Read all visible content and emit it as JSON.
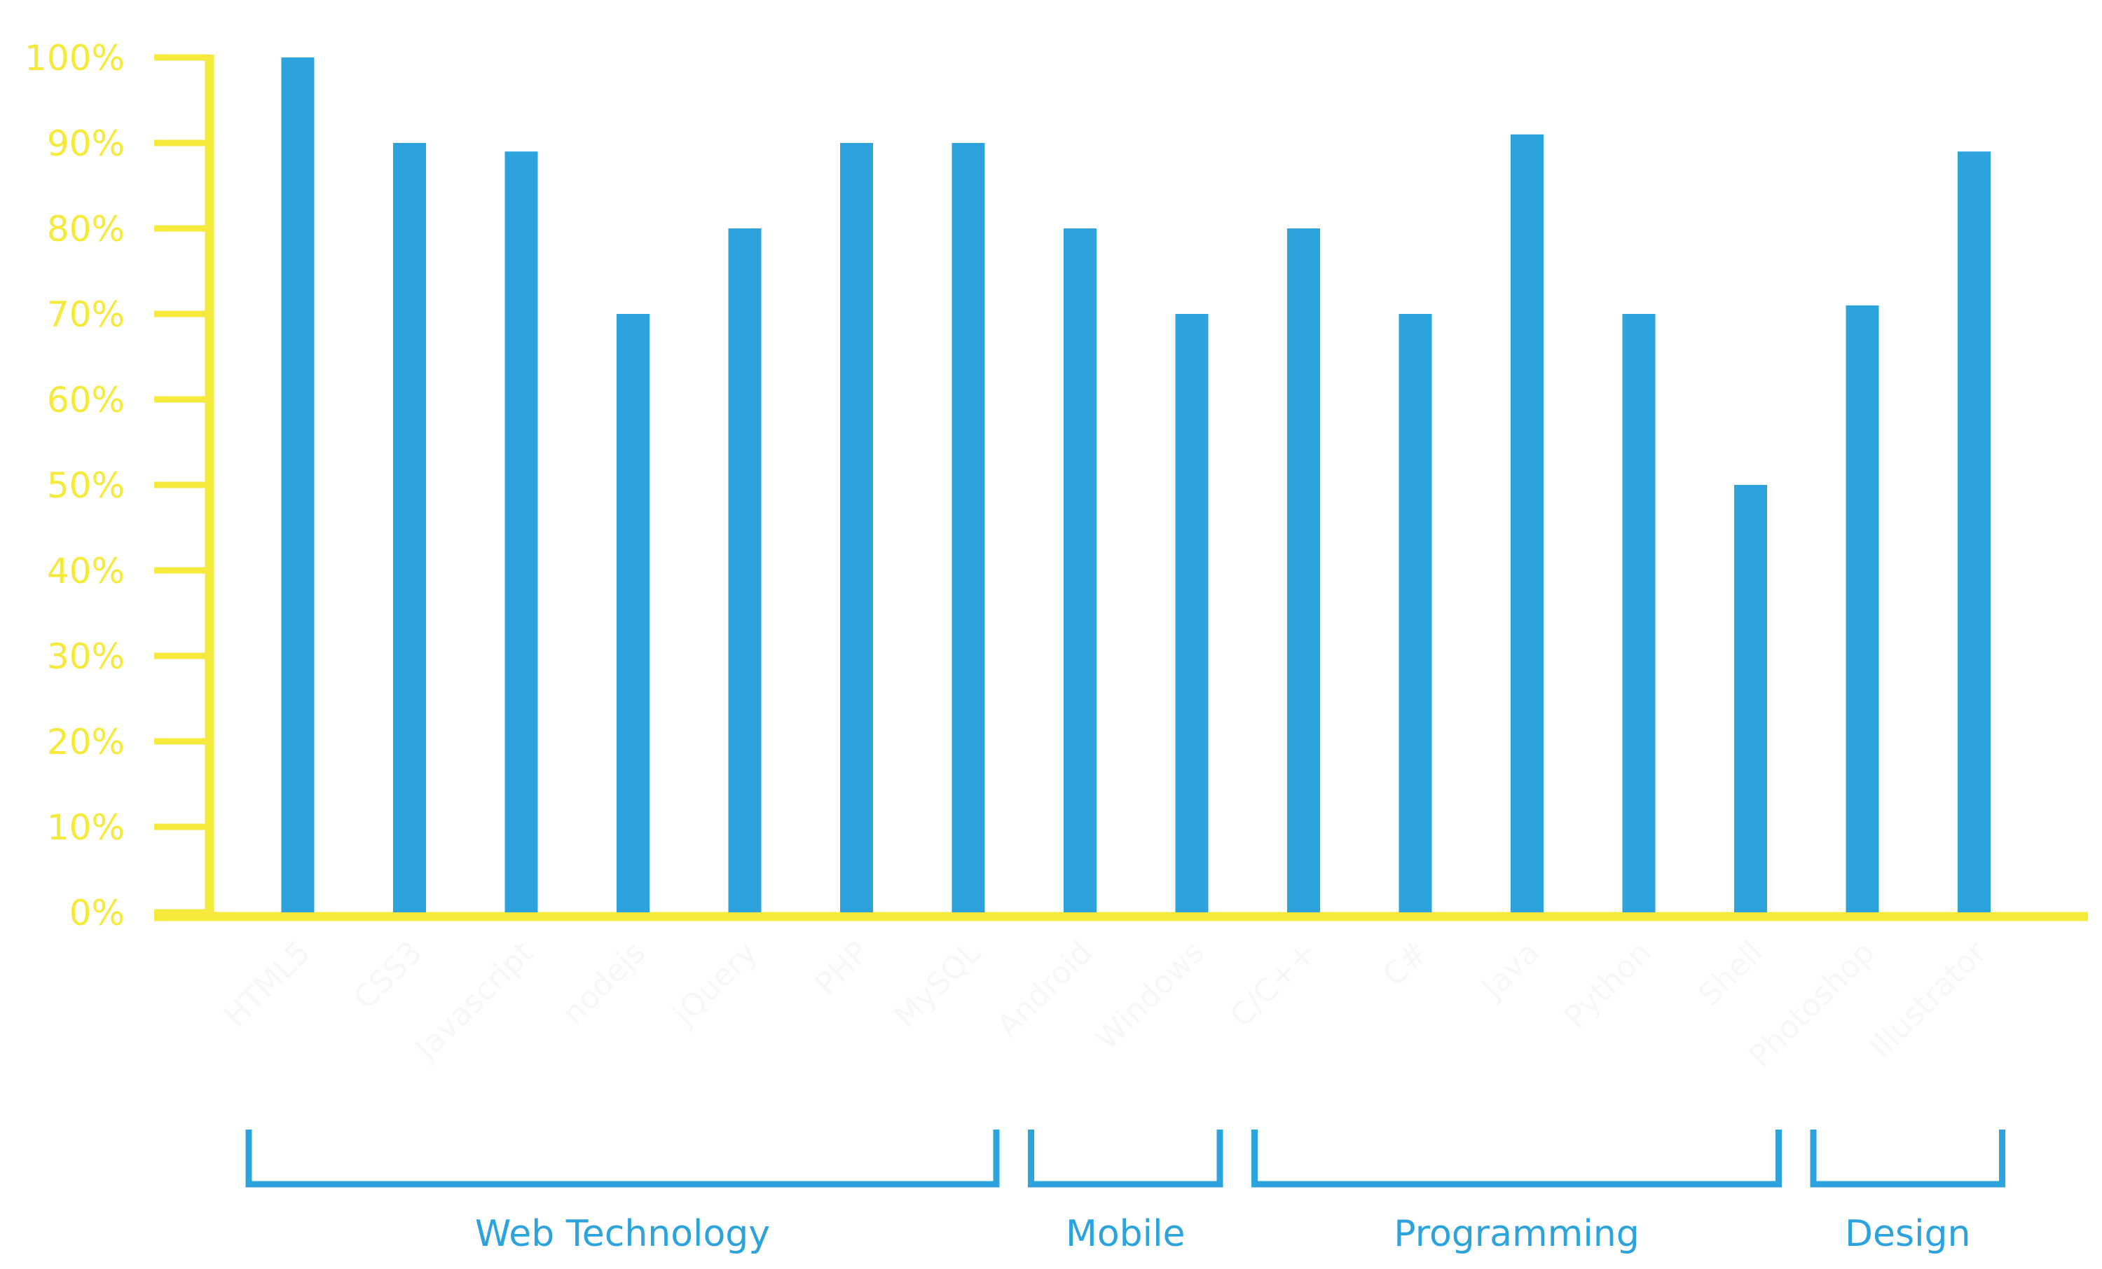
{
  "chart_data": {
    "type": "bar",
    "categories": [
      "HTML5",
      "CSS3",
      "Javascript",
      "nodejs",
      "jQuery",
      "PHP",
      "MySQL",
      "Android",
      "Windows",
      "C/C++",
      "C#",
      "Java",
      "Python",
      "Shell",
      "Photoshop",
      "Illustrator"
    ],
    "values": [
      100,
      90,
      89,
      70,
      80,
      90,
      90,
      80,
      70,
      80,
      70,
      91,
      70,
      50,
      71,
      89
    ],
    "ylim": [
      0,
      100
    ],
    "yticks": [
      "0%",
      "10%",
      "20%",
      "30%",
      "40%",
      "50%",
      "60%",
      "70%",
      "80%",
      "90%",
      "100%"
    ],
    "groups": [
      {
        "label": "Web Technology",
        "start": 0,
        "end": 6
      },
      {
        "label": "Mobile",
        "start": 7,
        "end": 8
      },
      {
        "label": "Programming",
        "start": 9,
        "end": 13
      },
      {
        "label": "Design",
        "start": 14,
        "end": 15
      }
    ],
    "grid": false,
    "colors": {
      "bar": "#2ca3dd",
      "axis": "#f5ea3b",
      "group": "#2ca3dd",
      "xtick": "#f7f7f7"
    }
  }
}
